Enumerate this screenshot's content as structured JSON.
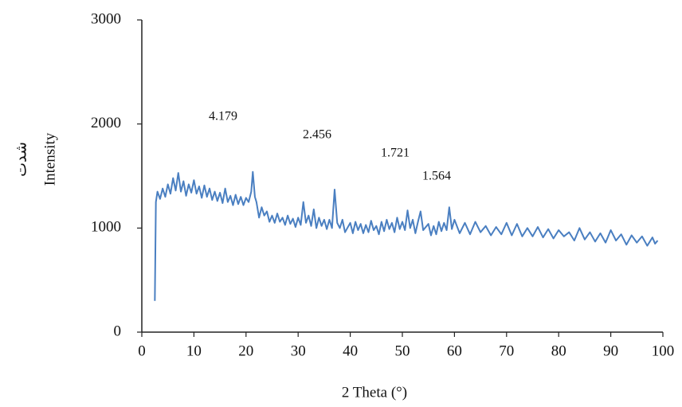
{
  "chart_data": {
    "type": "line",
    "xlabel": "2 Theta (°)",
    "ylabel": "Intensity",
    "ylabel_secondary": "شدت",
    "annotations": [
      "4.179",
      "2.456",
      "1.721",
      "1.564"
    ],
    "xlim": [
      0,
      100
    ],
    "xticks": [
      0,
      10,
      20,
      30,
      40,
      50,
      60,
      70,
      80,
      90,
      100
    ],
    "ylim": [
      0,
      3000
    ],
    "yticks": [
      0,
      1000,
      2000,
      3000
    ],
    "grid": false,
    "series": [
      {
        "color": "#4a7fc1",
        "x": [
          2.5,
          2.7,
          3,
          3.5,
          4,
          4.5,
          5,
          5.5,
          6,
          6.5,
          7,
          7.5,
          8,
          8.5,
          9,
          9.5,
          10,
          10.5,
          11,
          11.5,
          12,
          12.5,
          13,
          13.5,
          14,
          14.5,
          15,
          15.5,
          16,
          16.5,
          17,
          17.5,
          18,
          18.5,
          19,
          19.5,
          20,
          20.5,
          21,
          21.3,
          21.7,
          22,
          22.5,
          23,
          23.5,
          24,
          24.5,
          25,
          25.5,
          26,
          26.5,
          27,
          27.5,
          28,
          28.5,
          29,
          29.5,
          30,
          30.5,
          31,
          31.5,
          32,
          32.5,
          33,
          33.5,
          34,
          34.5,
          35,
          35.5,
          36,
          36.5,
          37,
          37.5,
          38,
          38.5,
          39,
          40,
          40.5,
          41,
          41.5,
          42,
          42.5,
          43,
          43.5,
          44,
          44.5,
          45,
          45.5,
          46,
          46.5,
          47,
          47.5,
          48,
          48.5,
          49,
          49.5,
          50,
          50.5,
          51,
          51.5,
          52,
          52.5,
          53,
          53.5,
          54,
          55,
          55.5,
          56,
          56.5,
          57,
          57.5,
          58,
          58.5,
          59,
          59.5,
          60,
          61,
          62,
          63,
          64,
          65,
          66,
          67,
          68,
          69,
          70,
          71,
          72,
          73,
          74,
          75,
          76,
          77,
          78,
          79,
          80,
          81,
          82,
          83,
          84,
          85,
          86,
          87,
          88,
          89,
          90,
          91,
          92,
          93,
          94,
          95,
          96,
          97,
          98,
          98.5,
          99
        ],
        "values": [
          300,
          1250,
          1350,
          1280,
          1380,
          1300,
          1420,
          1330,
          1480,
          1360,
          1530,
          1350,
          1450,
          1310,
          1420,
          1340,
          1460,
          1330,
          1400,
          1290,
          1410,
          1300,
          1380,
          1270,
          1350,
          1260,
          1340,
          1240,
          1380,
          1250,
          1310,
          1220,
          1320,
          1230,
          1300,
          1220,
          1290,
          1250,
          1350,
          1540,
          1300,
          1250,
          1100,
          1200,
          1120,
          1160,
          1060,
          1120,
          1050,
          1140,
          1060,
          1100,
          1030,
          1120,
          1040,
          1090,
          1010,
          1100,
          1030,
          1250,
          1050,
          1120,
          1020,
          1180,
          1000,
          1100,
          1020,
          1080,
          990,
          1080,
          1000,
          1370,
          1050,
          1000,
          1080,
          960,
          1050,
          950,
          1060,
          980,
          1040,
          950,
          1030,
          960,
          1070,
          980,
          1020,
          940,
          1060,
          970,
          1080,
          990,
          1050,
          960,
          1100,
          990,
          1060,
          980,
          1170,
          1000,
          1080,
          950,
          1060,
          1160,
          980,
          1040,
          930,
          1020,
          940,
          1060,
          970,
          1050,
          980,
          1200,
          990,
          1080,
          950,
          1050,
          940,
          1060,
          960,
          1020,
          930,
          1010,
          940,
          1050,
          930,
          1040,
          920,
          1000,
          920,
          1010,
          910,
          990,
          900,
          980,
          920,
          960,
          880,
          1000,
          890,
          960,
          870,
          950,
          860,
          980,
          880,
          940,
          840,
          930,
          860,
          920,
          830,
          910,
          850,
          880
        ]
      }
    ]
  }
}
